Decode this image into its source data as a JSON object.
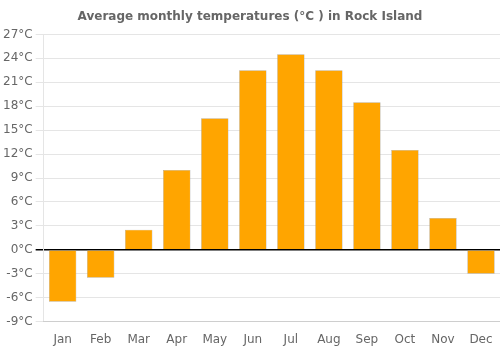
{
  "chart_data": {
    "type": "bar",
    "title": "Average monthly temperatures (°C ) in Rock Island",
    "categories": [
      "Jan",
      "Feb",
      "Mar",
      "Apr",
      "May",
      "Jun",
      "Jul",
      "Aug",
      "Sep",
      "Oct",
      "Nov",
      "Dec"
    ],
    "values": [
      -6.5,
      -3.5,
      2.5,
      10.0,
      16.5,
      22.5,
      24.5,
      22.5,
      18.5,
      12.5,
      4.0,
      -3.0
    ],
    "color": "#FFA500",
    "ylim": [
      -9,
      27
    ],
    "yticks": [
      {
        "value": -9,
        "label": "-9°C"
      },
      {
        "value": -6,
        "label": "-6°C"
      },
      {
        "value": -3,
        "label": "-3°C"
      },
      {
        "value": 0,
        "label": "0°C"
      },
      {
        "value": 3,
        "label": "3°C"
      },
      {
        "value": 6,
        "label": "6°C"
      },
      {
        "value": 9,
        "label": "9°C"
      },
      {
        "value": 12,
        "label": "12°C"
      },
      {
        "value": 15,
        "label": "15°C"
      },
      {
        "value": 18,
        "label": "18°C"
      },
      {
        "value": 21,
        "label": "21°C"
      },
      {
        "value": 24,
        "label": "24°C"
      },
      {
        "value": 27,
        "label": "27°C"
      }
    ],
    "grid": true
  }
}
